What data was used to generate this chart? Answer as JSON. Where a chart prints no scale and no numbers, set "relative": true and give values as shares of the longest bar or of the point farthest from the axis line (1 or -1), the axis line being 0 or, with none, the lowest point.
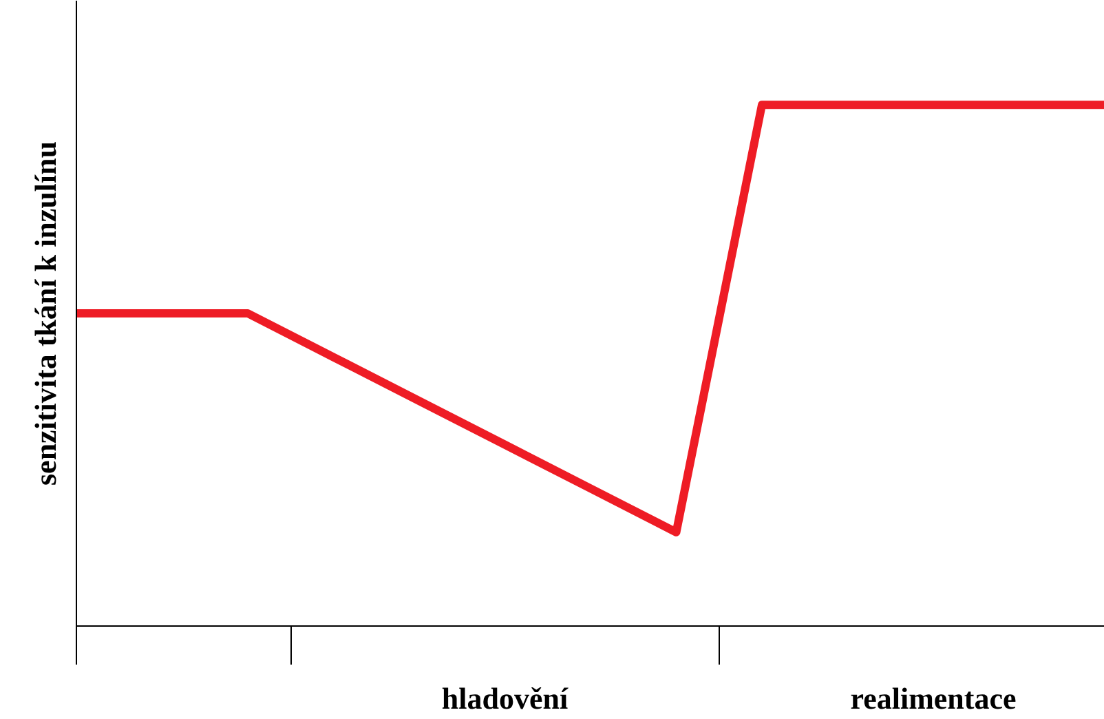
{
  "chart_data": {
    "type": "line",
    "relative": true,
    "ylabel": "senzitivita tkání k inzulínu",
    "categories": [
      null,
      null,
      null,
      null,
      null,
      "hladovění",
      null,
      null,
      null,
      null,
      "realimentace",
      null,
      null
    ],
    "series": [
      {
        "color": "#ee1c25",
        "values": [
          0.6,
          0.6,
          0.6,
          0.516,
          0.432,
          0.348,
          0.264,
          0.18,
          1,
          1,
          1,
          1,
          1
        ]
      }
    ],
    "grid": false,
    "marker": "none",
    "line_style": "solid"
  }
}
